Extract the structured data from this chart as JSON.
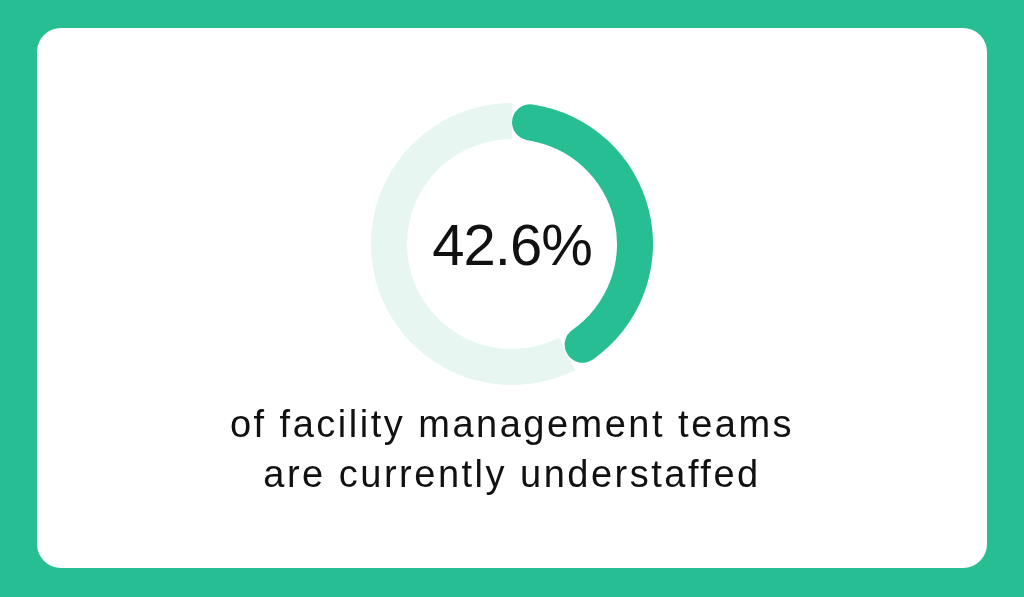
{
  "chart_data": {
    "type": "donut",
    "categories": [
      null,
      null
    ],
    "values": [
      42.6,
      57.4
    ],
    "colors": [
      "#28be93",
      "#e8f6f2"
    ],
    "value_labels": [
      "42.6%",
      null
    ],
    "annotations": [
      "of facility management teams are currently understaffed"
    ]
  }
}
